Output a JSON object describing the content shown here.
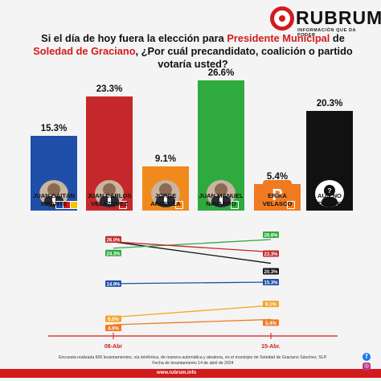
{
  "brand": {
    "name": "RUBRUM",
    "tagline": "INFORMACIÓN QUE DA PODER"
  },
  "question": {
    "part1": "Si el día de hoy fuera la elección para ",
    "highlight1": "Presidente Municipal",
    "part2": " de",
    "highlight2": "Soledad de Graciano",
    "part3": ", ¿Por cuál precandidato, coalición o partido votaría usted?"
  },
  "chart_data": [
    {
      "type": "bar",
      "categories": [
        "JUAN GAITÁN INFANTE",
        "JUAN CARLOS VELÁZQUEZ",
        "JORGE ARREOLA",
        "JUAN MANUEL NAVARRO",
        "ERIKA VELASCO",
        "AÚN NO DECIDE"
      ],
      "values": [
        15.3,
        23.3,
        9.1,
        26.6,
        5.4,
        20.3
      ],
      "value_labels": [
        "15.3%",
        "23.3%",
        "9.1%",
        "26.6%",
        "5.4%",
        "20.3%"
      ],
      "name_lines": [
        [
          "JUAN GAITÁN",
          "INFANTE"
        ],
        [
          "JUAN CARLOS",
          "VELÁZQUEZ"
        ],
        [
          "JORGE",
          "ARREOLA"
        ],
        [
          "JUAN MANUEL",
          "NAVARRO"
        ],
        [
          "ERIKA",
          "VELASCO"
        ],
        [
          "AÚN NO",
          "DECIDE"
        ]
      ],
      "colors": [
        "#1f4fa8",
        "#c5282a",
        "#f08a1c",
        "#2eaa3e",
        "#f07a20",
        "#111111"
      ]
    },
    {
      "type": "line",
      "x": [
        "08-Abr",
        "15-Abr."
      ],
      "series": [
        {
          "values": [
            26.0,
            20.3
          ],
          "labels": [
            "26.0%",
            "20.3%"
          ],
          "color": "#111111"
        },
        {
          "values": [
            24.3,
            26.6
          ],
          "labels": [
            "24.3%",
            "26.6%"
          ],
          "color": "#2eaa3e"
        },
        {
          "values": [
            26.0,
            23.3
          ],
          "labels": [
            "26.0%",
            "23.3%"
          ],
          "color": "#c5282a"
        },
        {
          "values": [
            14.9,
            15.3
          ],
          "labels": [
            "14.9%",
            "15.3%"
          ],
          "color": "#1f4fa8"
        },
        {
          "values": [
            6.0,
            9.1
          ],
          "labels": [
            "6.0%",
            "9.1%"
          ],
          "color": "#f5a623"
        },
        {
          "values": [
            4.0,
            5.4
          ],
          "labels": [
            "4.0%",
            "5.4%"
          ],
          "color": "#f07a20"
        }
      ]
    }
  ],
  "footer": {
    "note1": "Encuesta realizada 600 levantamientos, vía telefónica, de manera automática y aleatoria, en el municipio de Soledad de Graciano Sánchez, SLP.",
    "note2": "Fecha de levantamiento 14 de abril de 2024",
    "url": "www.rubrum.info"
  },
  "social": {
    "facebook": "f",
    "instagram": "◎"
  }
}
